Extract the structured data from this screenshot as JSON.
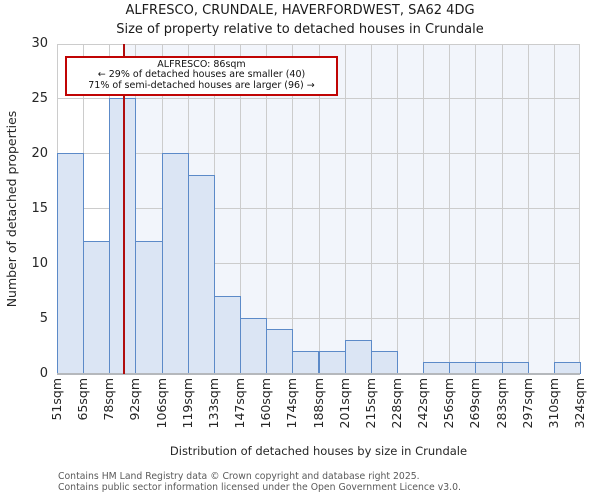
{
  "page": {
    "title_line1": "ALFRESCO, CRUNDALE, HAVERFORDWEST, SA62 4DG",
    "title_line2": "Size of property relative to detached houses in Crundale",
    "footer_line1": "Contains HM Land Registry data © Crown copyright and database right 2025.",
    "footer_line2": "Contains public sector information licensed under the Open Government Licence v3.0."
  },
  "chart_data": {
    "type": "bar",
    "subtype": "histogram",
    "title": "ALFRESCO, CRUNDALE, HAVERFORDWEST, SA62 4DG",
    "subtitle": "Size of property relative to detached houses in Crundale",
    "xlabel": "Distribution of detached houses by size in Crundale",
    "ylabel": "Number of detached properties",
    "ylim": [
      0,
      30
    ],
    "yticks": [
      0,
      5,
      10,
      15,
      20,
      25,
      30
    ],
    "grid": true,
    "legend": false,
    "x_tick_labels": [
      "51sqm",
      "65sqm",
      "78sqm",
      "92sqm",
      "106sqm",
      "119sqm",
      "133sqm",
      "147sqm",
      "160sqm",
      "174sqm",
      "188sqm",
      "201sqm",
      "215sqm",
      "228sqm",
      "242sqm",
      "256sqm",
      "269sqm",
      "283sqm",
      "297sqm",
      "310sqm",
      "324sqm"
    ],
    "bin_edges_sqm": [
      51,
      65,
      78,
      92,
      106,
      119,
      133,
      147,
      160,
      174,
      188,
      201,
      215,
      228,
      242,
      256,
      269,
      283,
      297,
      310,
      324
    ],
    "values": [
      20,
      12,
      25,
      12,
      20,
      18,
      7,
      5,
      4,
      2,
      2,
      3,
      2,
      0,
      1,
      1,
      1,
      1,
      0,
      1
    ],
    "marker": {
      "value_sqm": 86,
      "label": "ALFRESCO: 86sqm"
    },
    "annotation": {
      "line1": "ALFRESCO: 86sqm",
      "line2": "← 29% of detached houses are smaller (40)",
      "line3": "71% of semi-detached houses are larger (96) →"
    },
    "colors": {
      "bar_fill": "#dbe5f4",
      "bar_border": "#5c8ac8",
      "grid": "#cccccc",
      "baseline": "#b5b8bc",
      "marker_line": "#b00d0d",
      "annotation_border": "#c00404",
      "plot_tint_right_of_marker": "#f2f5fb"
    }
  }
}
